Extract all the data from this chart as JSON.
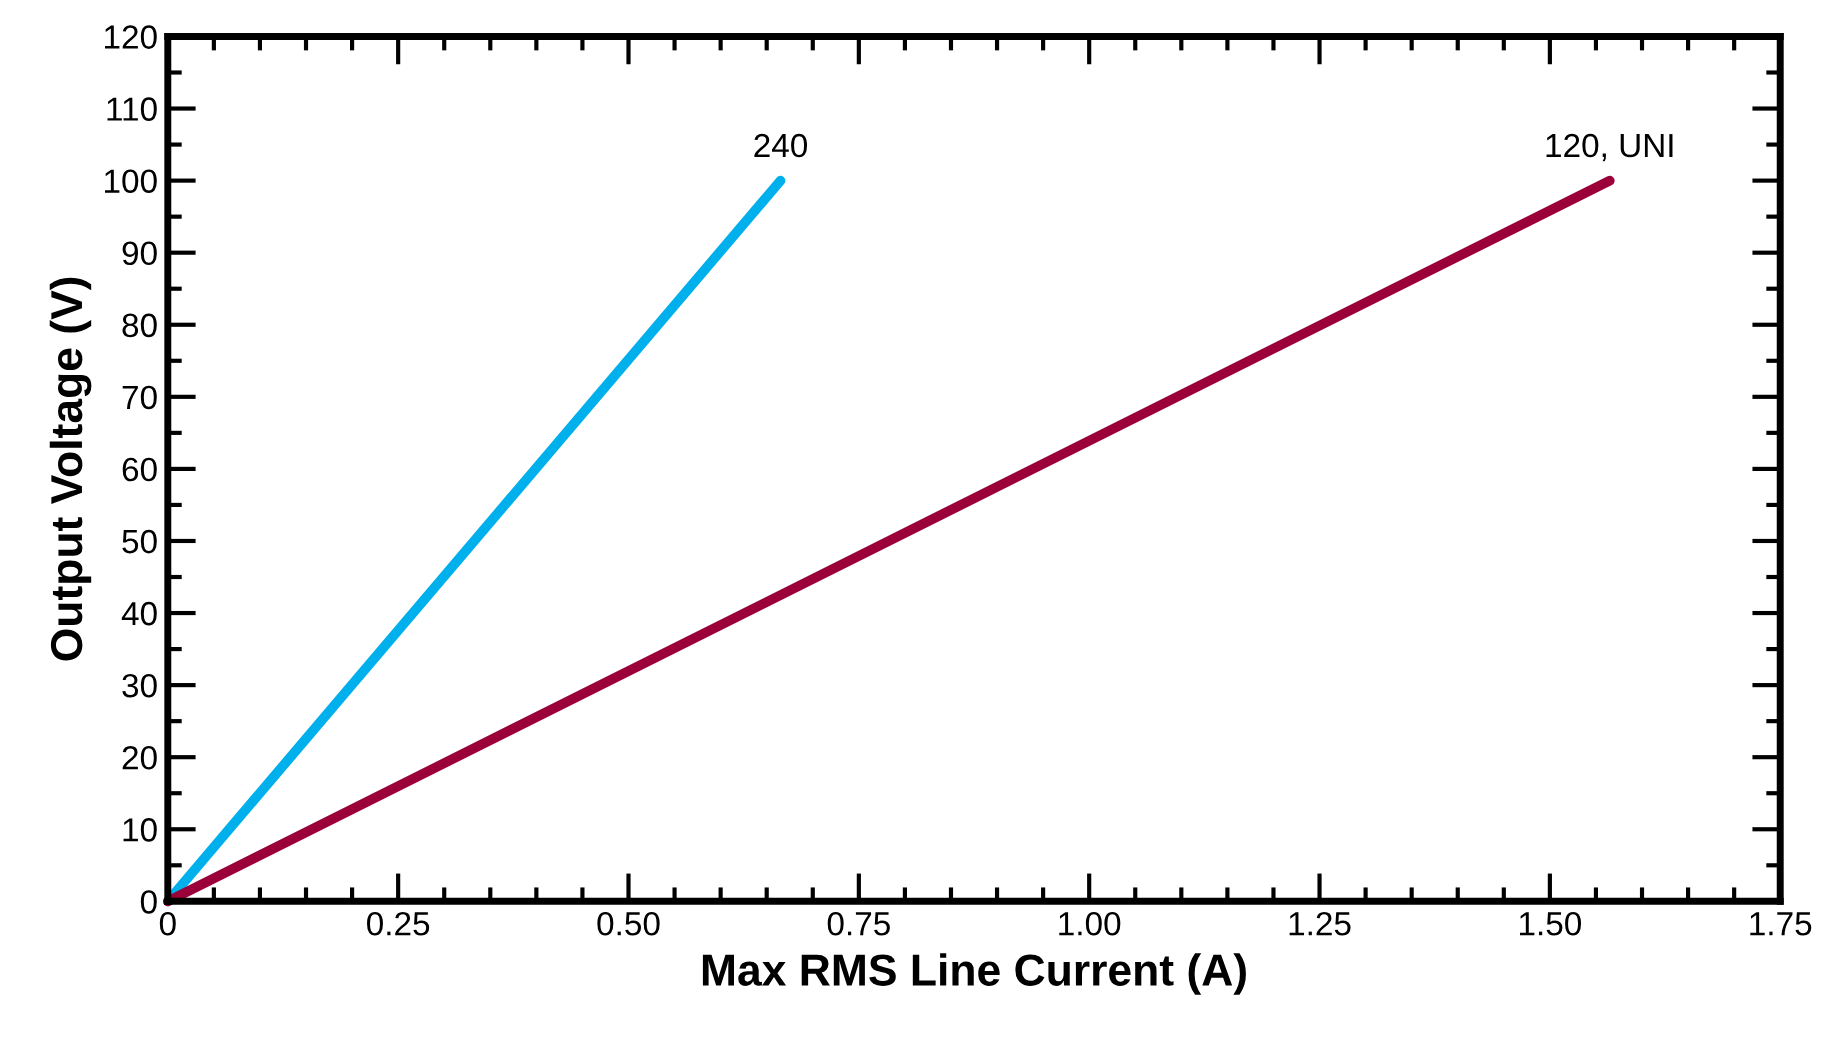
{
  "chart_data": {
    "type": "line",
    "xlabel": "Max RMS Line Current (A)",
    "ylabel": "Output Voltage (V)",
    "series": [
      {
        "name": "240",
        "color": "#00b0ec",
        "x": [
          0,
          0.665
        ],
        "values": [
          0,
          100
        ]
      },
      {
        "name": "120, UNI",
        "color": "#9b0038",
        "x": [
          0,
          1.565
        ],
        "values": [
          0,
          100
        ]
      }
    ],
    "xlim": [
      0,
      1.75
    ],
    "xticks": [
      0,
      {
        "value": 0.25,
        "label": "0.25"
      },
      {
        "value": 0.5,
        "label": "0.50"
      },
      {
        "value": 0.75,
        "label": "0.75"
      },
      {
        "value": 1,
        "label": "1.00"
      },
      {
        "value": 1.25,
        "label": "1.25"
      },
      {
        "value": 1.5,
        "label": "1.50"
      },
      {
        "value": 1.75,
        "label": "1.75"
      }
    ],
    "ylim": [
      0,
      120
    ],
    "yticks": [
      0,
      10,
      20,
      30,
      40,
      50,
      60,
      70,
      80,
      90,
      100,
      110,
      120
    ],
    "grid": false,
    "legend": false,
    "marker": "none",
    "line_style": "solid"
  }
}
